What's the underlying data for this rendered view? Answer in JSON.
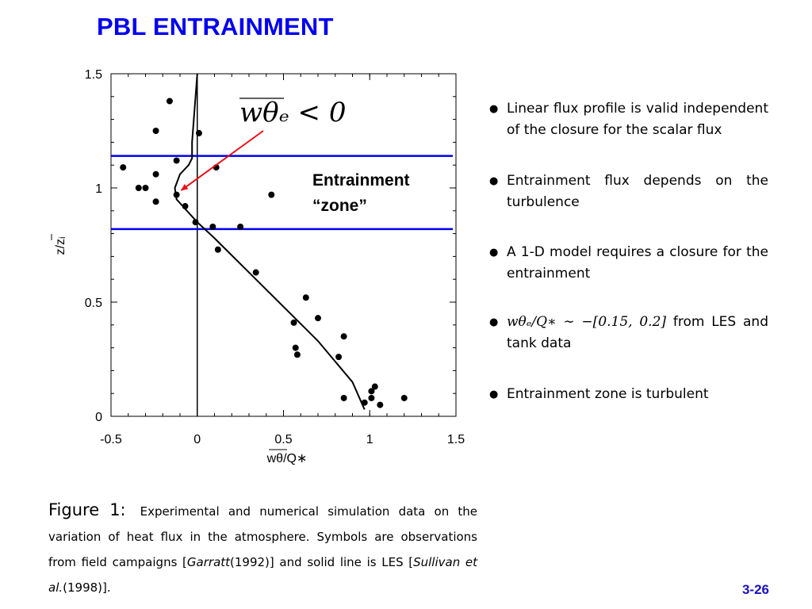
{
  "title": "PBL ENTRAINMENT",
  "page_number": "3-26",
  "bullets": [
    {
      "text": "Linear flux profile is valid independent of the closure for the scalar flux"
    },
    {
      "text": "Entrainment flux depends on the turbulence"
    },
    {
      "text": "A 1-D model requires a closure for the entrainment"
    },
    {
      "math": "wθₑ/Q∗ ∼ −[0.15, 0.2]",
      "text": " from LES and tank data"
    },
    {
      "text": "Entrainment zone is turbulent"
    }
  ],
  "caption": {
    "label": "Figure 1:",
    "text_1": "Experimental and numerical simulation data on the variation of heat flux in the atmosphere. Symbols are observations from field campaigns [",
    "cite_1": "Garratt",
    "text_2": "(1992)] and solid line is LES [",
    "cite_2": "Sullivan et al.",
    "text_3": "(1998)]."
  },
  "chart_data": {
    "type": "scatter",
    "xlabel": "wθ/Q∗",
    "ylabel": "z/zᵢ",
    "xlim": [
      -0.5,
      1.5
    ],
    "ylim": [
      0,
      1.5
    ],
    "x_ticks": [
      "-0.5",
      "0",
      "0.5",
      "1",
      "1.5"
    ],
    "x_tick_values": [
      -0.5,
      0,
      0.5,
      1,
      1.5
    ],
    "y_ticks": [
      "0",
      "0.5",
      "1",
      "1.5"
    ],
    "y_tick_values": [
      0,
      0.5,
      1,
      1.5
    ],
    "grid": false,
    "observations": {
      "x": [
        -0.16,
        -0.24,
        0.01,
        -0.12,
        -0.43,
        -0.24,
        0.11,
        -0.34,
        -0.3,
        -0.24,
        -0.12,
        0.43,
        -0.07,
        -0.01,
        0.09,
        0.25,
        0.12,
        0.34,
        0.63,
        0.7,
        0.56,
        0.57,
        0.58,
        0.85,
        0.82,
        0.85,
        1.01,
        1.03,
        1.01,
        0.97,
        1.06,
        1.2
      ],
      "y": [
        1.38,
        1.25,
        1.24,
        1.12,
        1.09,
        1.06,
        1.09,
        1.0,
        1.0,
        0.94,
        0.97,
        0.97,
        0.92,
        0.85,
        0.83,
        0.83,
        0.73,
        0.63,
        0.52,
        0.43,
        0.41,
        0.3,
        0.27,
        0.35,
        0.26,
        0.08,
        0.11,
        0.13,
        0.08,
        0.06,
        0.05,
        0.08
      ]
    },
    "les_profile": {
      "x": [
        0.0,
        -0.01,
        -0.02,
        -0.03,
        -0.03,
        -0.05,
        -0.1,
        -0.13,
        -0.12,
        -0.06,
        0.0,
        0.1,
        0.3,
        0.5,
        0.7,
        0.9,
        0.97
      ],
      "y": [
        1.5,
        1.4,
        1.3,
        1.2,
        1.13,
        1.1,
        1.06,
        1.0,
        0.95,
        0.9,
        0.85,
        0.78,
        0.63,
        0.48,
        0.33,
        0.15,
        0.03
      ]
    },
    "hlines": [
      1.14,
      0.82
    ],
    "hline_color": "#0000ee",
    "vline_x": 0,
    "annotations": {
      "formula": "wθₑ < 0",
      "zone_line1": "Entrainment",
      "zone_line2": "“zone”",
      "arrow_color": "#e8101a",
      "arrow_to": {
        "x": -0.12,
        "y": 0.99
      }
    }
  }
}
